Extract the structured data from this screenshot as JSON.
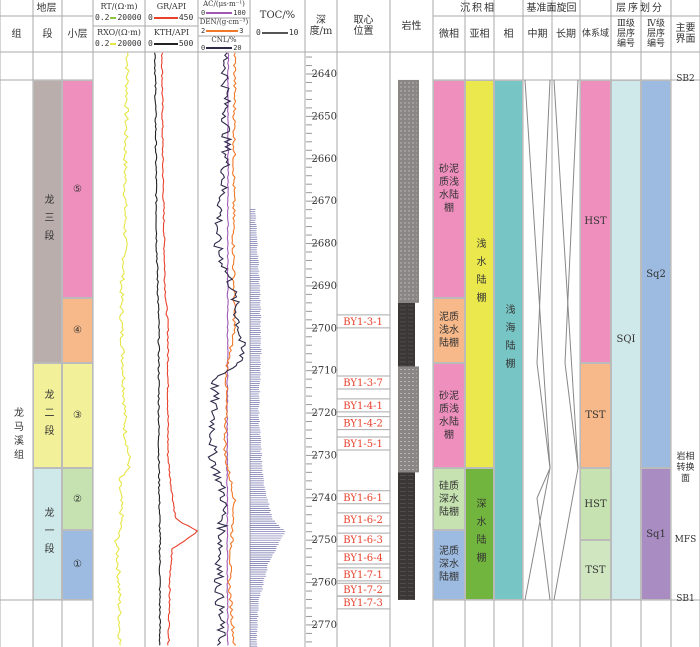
{
  "header": {
    "strata": "地层",
    "group": "组",
    "member": "段",
    "layer": "小层",
    "rt": "RT/(Ω·m)",
    "rt_scale": [
      "0.2",
      "20000"
    ],
    "rxo": "RXO/(Ω·m)",
    "rxo_scale": [
      "0.2",
      "20000"
    ],
    "gr": "GR/API",
    "gr_scale": [
      "0",
      "450"
    ],
    "kth": "KTH/API",
    "kth_scale": [
      "0",
      "500"
    ],
    "ac": "AC/(μs·m⁻¹)",
    "ac_scale": [
      "0",
      "100"
    ],
    "den": "DEN/(g·cm⁻³)",
    "den_scale": [
      "2",
      "3"
    ],
    "cnl": "CNL/%",
    "cnl_scale": [
      "0",
      "20"
    ],
    "toc": "TOC/%",
    "toc_scale": [
      "0",
      "10"
    ],
    "depth": "深度/m",
    "core": "取心位置",
    "lith": "岩性",
    "facies_group": "沉积相",
    "microfacies": "微相",
    "subfacies": "亚相",
    "facies": "相",
    "cycle_group": "基准面旋回",
    "mid": "中期",
    "long": "长期",
    "seq_group": "层序划分",
    "systems_tract": "体系域",
    "seq3": "Ⅲ级层序编号",
    "seq4": "Ⅳ级层序编号",
    "surface": "主要界面"
  },
  "colors": {
    "rt": "#8dc63f",
    "rxo": "#e6e645",
    "gr": "#e8412c",
    "kth": "#222222",
    "ac": "#a05ab4",
    "den": "#f07828",
    "cnl": "#2e2a4a",
    "toc": "#6a6aa8",
    "core_text": "#e8412c"
  },
  "group_label": "龙马溪组",
  "members": [
    {
      "label": "龙三段",
      "top": 2641.4,
      "base": 2708.2,
      "color": "#b9aeac"
    },
    {
      "label": "龙二段",
      "top": 2708.2,
      "base": 2733,
      "color": "#f3f09a"
    },
    {
      "label": "龙一段",
      "top": 2733,
      "base": 2764.1,
      "color": "#cfe9ea"
    }
  ],
  "layers": [
    {
      "label": "⑤",
      "top": 2641.4,
      "base": 2692.9,
      "color": "#ef8fbe"
    },
    {
      "label": "④",
      "top": 2692.9,
      "base": 2708.2,
      "color": "#f7b98a"
    },
    {
      "label": "③",
      "top": 2708.2,
      "base": 2733,
      "color": "#f3f09a"
    },
    {
      "label": "②",
      "top": 2733,
      "base": 2747.6,
      "color": "#c5e2b0"
    },
    {
      "label": "①",
      "top": 2747.6,
      "base": 2764.1,
      "color": "#9dbbe0"
    }
  ],
  "microfacies": [
    {
      "label": "砂泥质浅水陆棚",
      "top": 2641.4,
      "base": 2692.9,
      "color": "#ef8fbe"
    },
    {
      "label": "泥质浅水陆棚",
      "top": 2692.9,
      "base": 2708.2,
      "color": "#f7b98a"
    },
    {
      "label": "砂泥质浅水陆棚",
      "top": 2708.2,
      "base": 2733,
      "color": "#ef8fbe"
    },
    {
      "label": "硅质深水陆棚",
      "top": 2733,
      "base": 2747.6,
      "color": "#c5e2b0"
    },
    {
      "label": "泥质深水陆棚",
      "top": 2747.6,
      "base": 2764.1,
      "color": "#9dbbe0"
    }
  ],
  "subfacies": [
    {
      "label": "浅水陆棚",
      "top": 2641.4,
      "base": 2733,
      "color": "#ebe84e"
    },
    {
      "label": "深水陆棚",
      "top": 2733,
      "base": 2764.1,
      "color": "#72b53e"
    }
  ],
  "facies": [
    {
      "label": "浅海陆棚",
      "top": 2641.4,
      "base": 2764.1,
      "color": "#78c5c5"
    }
  ],
  "systems_tracts": [
    {
      "label": "HST",
      "top": 2641.4,
      "base": 2708.2,
      "color": "#ef8fbe"
    },
    {
      "label": "TST",
      "top": 2708.2,
      "base": 2733,
      "color": "#f7b98a"
    },
    {
      "label": "HST",
      "top": 2733,
      "base": 2750,
      "color": "#c5e2b0"
    },
    {
      "label": "TST",
      "top": 2750,
      "base": 2764.1,
      "color": "#cfe6c0"
    }
  ],
  "seq3": [
    {
      "label": "SQI",
      "top": 2641.4,
      "base": 2764.1,
      "color": "#cfe9ea"
    }
  ],
  "seq4": [
    {
      "label": "Sq2",
      "top": 2641.4,
      "base": 2733,
      "color": "#9dbbe0"
    },
    {
      "label": "Sq1",
      "top": 2733,
      "base": 2764.1,
      "color": "#a98cc2"
    }
  ],
  "surfaces": [
    {
      "label": "SB2",
      "depth": 2641.4
    },
    {
      "label": "岩相转换面",
      "depth": 2733
    },
    {
      "label": "MFS",
      "depth": 2750
    },
    {
      "label": "SB1",
      "depth": 2764.1
    }
  ],
  "core_samples": [
    {
      "label": "BY1-3-1",
      "depth": 2698.5
    },
    {
      "label": "BY1-3-7",
      "depth": 2712.9
    },
    {
      "label": "BY1-4-1",
      "depth": 2718.3
    },
    {
      "label": "BY1-4-2",
      "depth": 2722.5
    },
    {
      "label": "BY1-5-1",
      "depth": 2727.3
    },
    {
      "label": "BY1-6-1",
      "depth": 2740
    },
    {
      "label": "BY1-6-2",
      "depth": 2745.2
    },
    {
      "label": "BY1-6-3",
      "depth": 2750
    },
    {
      "label": "BY1-6-4",
      "depth": 2754.2
    },
    {
      "label": "BY1-7-1",
      "depth": 2758.2
    },
    {
      "label": "BY1-7-2",
      "depth": 2761.8
    },
    {
      "label": "BY1-7-3",
      "depth": 2764.8
    }
  ],
  "lithology": [
    {
      "type": "silty-shale",
      "top": 2641.4,
      "base": 2694
    },
    {
      "type": "shale",
      "top": 2694,
      "base": 2709
    },
    {
      "type": "silty-shale",
      "top": 2709,
      "base": 2734
    },
    {
      "type": "shale",
      "top": 2734,
      "base": 2764.1
    }
  ],
  "chart_data": {
    "type": "line",
    "ylabel": "深度/m",
    "ylim": [
      2635,
      2775
    ],
    "depth_ticks": [
      "2640",
      "2650",
      "2660",
      "2670",
      "2680",
      "2690",
      "2700",
      "2710",
      "2720",
      "2730",
      "2740",
      "2750",
      "2760",
      "2770"
    ],
    "series": [
      {
        "name": "RXO",
        "unit": "Ω·m",
        "scale": "log",
        "xlim": [
          0.2,
          20000
        ],
        "depth": [
          2635,
          2660,
          2680,
          2690,
          2700,
          2715,
          2725,
          2732,
          2735,
          2745,
          2750,
          2760,
          2775
        ],
        "values": [
          430,
          250,
          250,
          112,
          112,
          200,
          250,
          630,
          63,
          112,
          36,
          63,
          80
        ]
      },
      {
        "name": "GR",
        "unit": "API",
        "xlim": [
          0,
          450
        ],
        "depth": [
          2635,
          2660,
          2690,
          2700,
          2730,
          2735,
          2745,
          2748,
          2752,
          2760,
          2775
        ],
        "values": [
          145,
          150,
          170,
          195,
          195,
          212,
          260,
          450,
          230,
          210,
          200
        ]
      },
      {
        "name": "KTH",
        "unit": "API",
        "xlim": [
          0,
          500
        ],
        "depth": [
          2635,
          2680,
          2700,
          2730,
          2750,
          2775
        ],
        "values": [
          95,
          110,
          130,
          130,
          140,
          140
        ]
      },
      {
        "name": "AC",
        "unit": "μs/m",
        "xlim": [
          0,
          100
        ],
        "depth": [
          2635,
          2700,
          2730,
          2775
        ],
        "values": [
          58,
          57,
          56,
          57
        ]
      },
      {
        "name": "DEN",
        "unit": "g/cm³",
        "xlim": [
          2,
          3
        ],
        "depth": [
          2635,
          2680,
          2700,
          2710,
          2730,
          2740,
          2760,
          2775
        ],
        "values": [
          2.71,
          2.68,
          2.7,
          2.55,
          2.52,
          2.7,
          2.6,
          2.7
        ]
      },
      {
        "name": "CNL",
        "unit": "%",
        "xlim": [
          0,
          20
        ],
        "depth": [
          2635,
          2660,
          2680,
          2690,
          2700,
          2708,
          2712,
          2730,
          2740,
          2760,
          2775
        ],
        "values": [
          10.5,
          11,
          7,
          13,
          16,
          17,
          6.5,
          5.5,
          10,
          8,
          9
        ]
      },
      {
        "name": "TOC",
        "unit": "%",
        "xlim": [
          0,
          10
        ],
        "depth": [
          2672,
          2690,
          2705,
          2720,
          2735,
          2745,
          2748,
          2755,
          2765,
          2775
        ],
        "values": [
          0.9,
          1.8,
          2,
          1.6,
          2.3,
          4,
          6.4,
          3.5,
          1.5,
          1.2
        ]
      }
    ]
  }
}
